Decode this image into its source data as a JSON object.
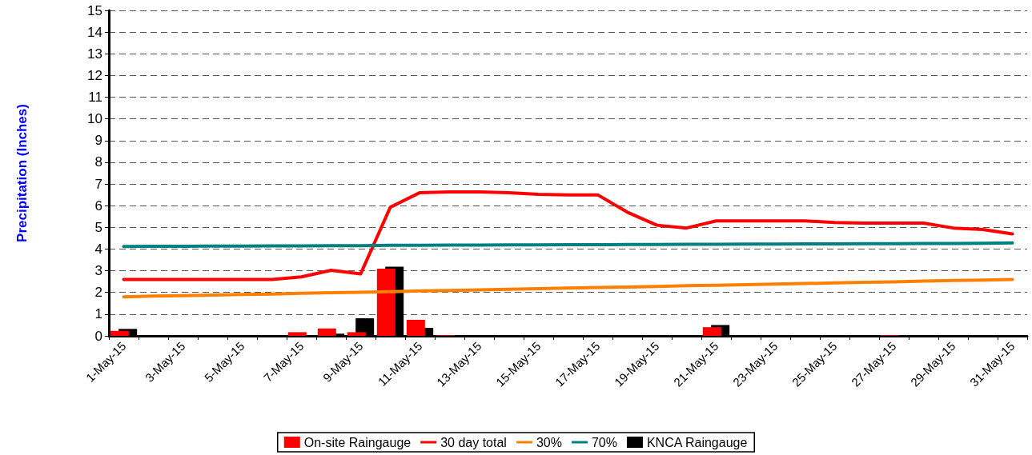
{
  "chart_data": {
    "type": "bar",
    "ylabel": "Precipitation (Inches)",
    "categories": [
      "1-May-15",
      null,
      "3-May-15",
      null,
      "5-May-15",
      null,
      "7-May-15",
      null,
      "9-May-15",
      null,
      "11-May-15",
      null,
      "13-May-15",
      null,
      "15-May-15",
      null,
      "17-May-15",
      null,
      "19-May-15",
      null,
      "21-May-15",
      null,
      "23-May-15",
      null,
      "25-May-15",
      null,
      "27-May-15",
      null,
      "29-May-15",
      null,
      "31-May-15"
    ],
    "series": [
      {
        "name": "On-site Raingauge",
        "color": "#ff0000",
        "values": [
          0.23,
          0,
          0,
          0,
          0,
          0,
          0.17,
          0.34,
          0.17,
          3.1,
          0.74,
          0.03,
          0,
          0,
          0,
          0,
          0,
          0,
          0,
          0,
          0.4,
          0,
          0,
          0,
          0,
          0,
          0.03,
          0,
          0,
          0,
          0
        ]
      },
      {
        "name": "30 day total",
        "type": "line",
        "color": "#ff0000",
        "values": [
          2.6,
          2.6,
          2.6,
          2.6,
          2.6,
          2.6,
          2.72,
          3.02,
          2.86,
          5.93,
          6.6,
          6.63,
          6.63,
          6.6,
          6.52,
          6.5,
          6.5,
          5.7,
          5.1,
          4.97,
          5.3,
          5.3,
          5.3,
          5.3,
          5.22,
          5.2,
          5.2,
          5.2,
          4.97,
          4.9,
          4.7
        ]
      },
      {
        "name": "30%",
        "type": "line",
        "color": "#ff8000",
        "values": [
          1.8,
          1.83,
          1.85,
          1.88,
          1.91,
          1.93,
          1.96,
          1.99,
          2.01,
          2.04,
          2.07,
          2.09,
          2.12,
          2.15,
          2.17,
          2.2,
          2.23,
          2.25,
          2.28,
          2.31,
          2.33,
          2.36,
          2.39,
          2.41,
          2.44,
          2.47,
          2.49,
          2.52,
          2.55,
          2.57,
          2.6
        ]
      },
      {
        "name": "70%",
        "type": "line",
        "color": "#008080",
        "values": [
          4.12,
          4.13,
          4.13,
          4.14,
          4.14,
          4.15,
          4.15,
          4.16,
          4.16,
          4.17,
          4.17,
          4.18,
          4.18,
          4.19,
          4.19,
          4.2,
          4.2,
          4.21,
          4.21,
          4.22,
          4.22,
          4.23,
          4.23,
          4.24,
          4.24,
          4.25,
          4.25,
          4.26,
          4.26,
          4.27,
          4.28
        ]
      },
      {
        "name": "KNCA Raingauge",
        "color": "#000000",
        "values": [
          0.32,
          0,
          0,
          0,
          0,
          0,
          0,
          0.1,
          0.81,
          3.19,
          0.37,
          0,
          0,
          0,
          0,
          0,
          0,
          0,
          0,
          0,
          0.5,
          0,
          0,
          0,
          0,
          0,
          0,
          0,
          0,
          0,
          0
        ]
      }
    ],
    "ylim": [
      0,
      15
    ],
    "yticks": [
      0,
      1,
      2,
      3,
      4,
      5,
      6,
      7,
      8,
      9,
      10,
      11,
      12,
      13,
      14,
      15
    ],
    "grid": "y",
    "legend": "bottom",
    "marker": "none",
    "line_style": "solid"
  }
}
